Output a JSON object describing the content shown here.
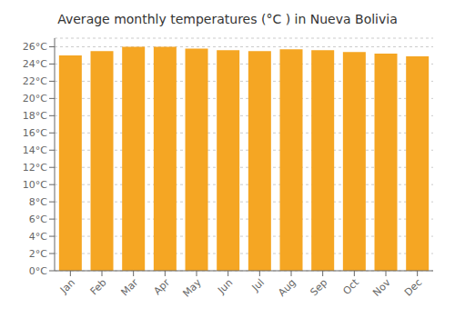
{
  "chart_data": {
    "type": "bar",
    "title": "Average monthly temperatures (°C ) in Nueva Bolivia",
    "categories": [
      "Jan",
      "Feb",
      "Mar",
      "Apr",
      "May",
      "Jun",
      "Jul",
      "Aug",
      "Sep",
      "Oct",
      "Nov",
      "Dec"
    ],
    "values": [
      25.0,
      25.5,
      26.0,
      26.0,
      25.8,
      25.6,
      25.5,
      25.7,
      25.6,
      25.4,
      25.2,
      24.9
    ],
    "color": "#F5A623",
    "ylim": [
      0,
      27
    ],
    "yticks": [
      {
        "value": 0,
        "label": "0°C"
      },
      {
        "value": 2,
        "label": "2°C"
      },
      {
        "value": 4,
        "label": "4°C"
      },
      {
        "value": 6,
        "label": "6°C"
      },
      {
        "value": 8,
        "label": "8°C"
      },
      {
        "value": 10,
        "label": "10°C"
      },
      {
        "value": 12,
        "label": "12°C"
      },
      {
        "value": 14,
        "label": "14°C"
      },
      {
        "value": 16,
        "label": "16°C"
      },
      {
        "value": 18,
        "label": "18°C"
      },
      {
        "value": 20,
        "label": "20°C"
      },
      {
        "value": 22,
        "label": "22°C"
      },
      {
        "value": 24,
        "label": "24°C"
      },
      {
        "value": 26,
        "label": "26°C"
      }
    ],
    "grid": true
  }
}
